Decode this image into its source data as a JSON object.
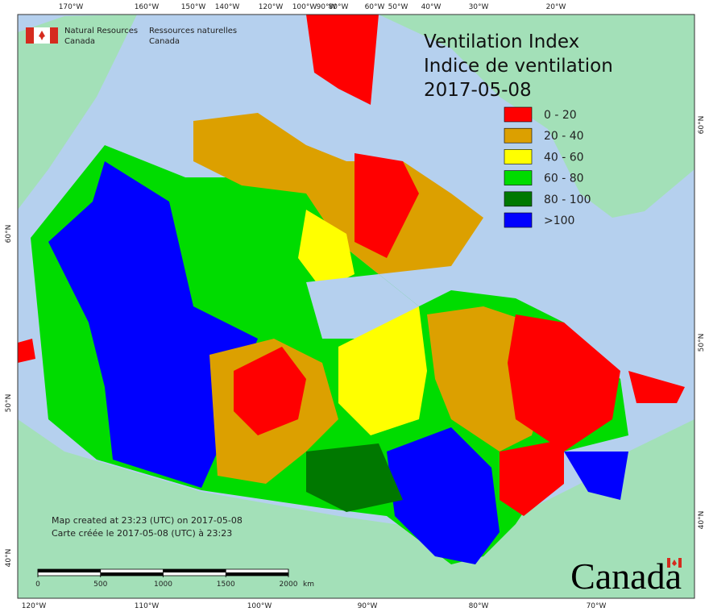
{
  "agency": {
    "en": "Natural Resources",
    "en_country": "Canada",
    "fr": "Ressources naturelles",
    "fr_country": "Canada"
  },
  "title": {
    "line1": "Ventilation Index",
    "line2": "Indice de ventilation",
    "date": "2017-05-08"
  },
  "legend": [
    {
      "label": "0 - 20",
      "color": "#ff0000"
    },
    {
      "label": "20 - 40",
      "color": "#dca000"
    },
    {
      "label": "40 - 60",
      "color": "#ffff00"
    },
    {
      "label": "60 - 80",
      "color": "#00dc00"
    },
    {
      "label": "80 - 100",
      "color": "#007800"
    },
    {
      "label": ">100",
      "color": "#0000ff"
    }
  ],
  "top_lon": [
    "170°W",
    "160°W",
    "150°W",
    "140°W",
    "120°W",
    "100°W",
    "90°W",
    "80°W",
    "60°W",
    "50°W",
    "40°W",
    "30°W",
    "20°W"
  ],
  "bottom_lon": [
    "120°W",
    "110°W",
    "100°W",
    "90°W",
    "80°W",
    "70°W"
  ],
  "left_lat": [
    "60°N",
    "50°N",
    "40°N"
  ],
  "right_lat": [
    "60°N",
    "50°N",
    "40°N"
  ],
  "notes": [
    "Map created at 23:23 (UTC) on 2017-05-08",
    "Carte créée le 2017-05-08 (UTC) à 23:23"
  ],
  "scale_bar": {
    "ticks": [
      0,
      500,
      1000,
      1500,
      2000
    ],
    "unit": "km"
  },
  "wordmark": "Canada"
}
